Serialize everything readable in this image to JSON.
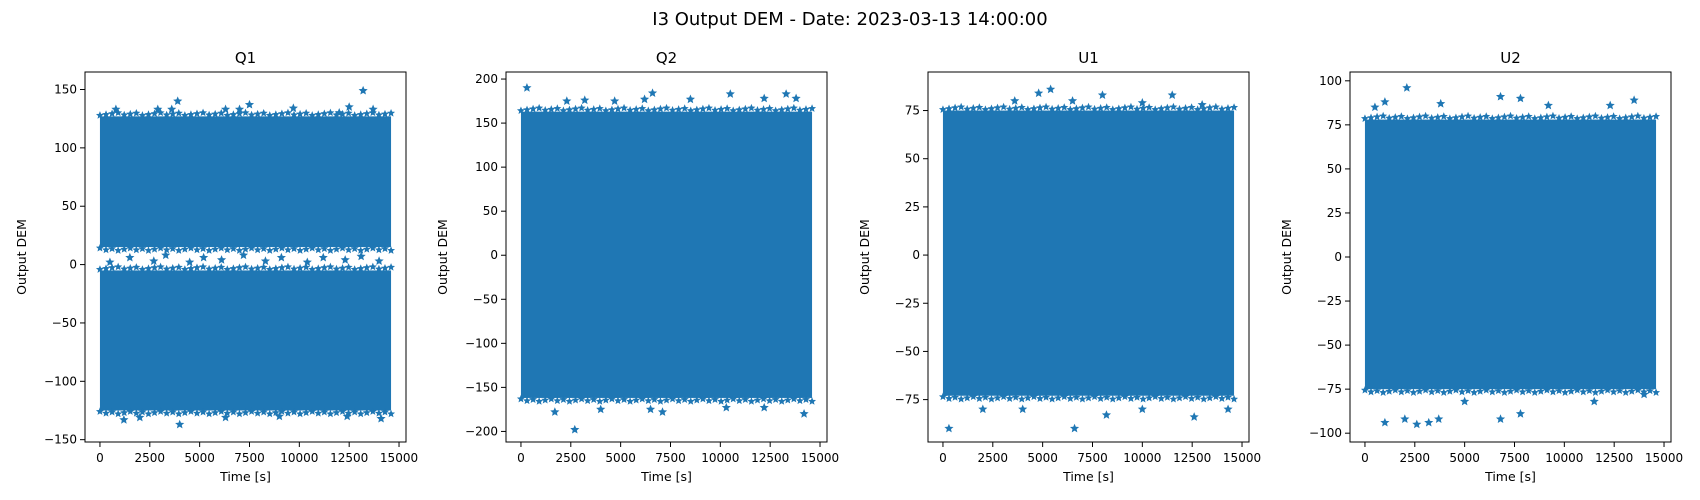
{
  "figure": {
    "suptitle": "I3 Output DEM - Date: 2023-03-13 14:00:00",
    "marker_color": "#1f77b4"
  },
  "chart_data": [
    {
      "type": "scatter",
      "title": "Q1",
      "xlabel": "Time [s]",
      "ylabel": "Output DEM",
      "xlim": [
        -750,
        15350
      ],
      "ylim": [
        -152,
        165
      ],
      "xticks": [
        0,
        2500,
        5000,
        7500,
        10000,
        12500,
        15000
      ],
      "yticks": [
        -150,
        -100,
        -50,
        0,
        50,
        100,
        150
      ],
      "marker": "star",
      "x_extent": [
        0,
        14600
      ],
      "bands": [
        {
          "x": [
            0,
            14600
          ],
          "y": [
            -125,
            -5
          ]
        },
        {
          "x": [
            0,
            14600
          ],
          "y": [
            15,
            127
          ]
        }
      ],
      "outliers": [
        {
          "x": 800,
          "y": 133
        },
        {
          "x": 2900,
          "y": 133
        },
        {
          "x": 3600,
          "y": 133
        },
        {
          "x": 3900,
          "y": 140
        },
        {
          "x": 6300,
          "y": 133
        },
        {
          "x": 7000,
          "y": 133
        },
        {
          "x": 7500,
          "y": 137
        },
        {
          "x": 9700,
          "y": 134
        },
        {
          "x": 12000,
          "y": 130
        },
        {
          "x": 12500,
          "y": 135
        },
        {
          "x": 13200,
          "y": 149
        },
        {
          "x": 13700,
          "y": 133
        },
        {
          "x": 500,
          "y": 2
        },
        {
          "x": 1500,
          "y": 6
        },
        {
          "x": 2700,
          "y": 3
        },
        {
          "x": 3300,
          "y": 8
        },
        {
          "x": 4500,
          "y": 2
        },
        {
          "x": 5200,
          "y": 6
        },
        {
          "x": 6100,
          "y": 4
        },
        {
          "x": 7200,
          "y": 8
        },
        {
          "x": 8300,
          "y": 3
        },
        {
          "x": 9100,
          "y": 6
        },
        {
          "x": 10400,
          "y": 2
        },
        {
          "x": 11200,
          "y": 6
        },
        {
          "x": 12300,
          "y": 4
        },
        {
          "x": 13100,
          "y": 7
        },
        {
          "x": 14000,
          "y": 3
        },
        {
          "x": 4000,
          "y": -137
        },
        {
          "x": 1200,
          "y": -133
        },
        {
          "x": 2000,
          "y": -131
        },
        {
          "x": 6300,
          "y": -131
        },
        {
          "x": 9000,
          "y": -130
        },
        {
          "x": 12400,
          "y": -130
        },
        {
          "x": 14100,
          "y": -132
        }
      ]
    },
    {
      "type": "scatter",
      "title": "Q2",
      "xlabel": "Time [s]",
      "ylabel": "Output DEM",
      "xlim": [
        -750,
        15350
      ],
      "ylim": [
        -212,
        208
      ],
      "xticks": [
        0,
        2500,
        5000,
        7500,
        10000,
        12500,
        15000
      ],
      "yticks": [
        -200,
        -150,
        -100,
        -50,
        0,
        50,
        100,
        150,
        200
      ],
      "marker": "star",
      "x_extent": [
        0,
        14600
      ],
      "bands": [
        {
          "x": [
            0,
            14600
          ],
          "y": [
            -162,
            163
          ]
        }
      ],
      "outliers": [
        {
          "x": 300,
          "y": 190
        },
        {
          "x": 2300,
          "y": 175
        },
        {
          "x": 3200,
          "y": 176
        },
        {
          "x": 4700,
          "y": 175
        },
        {
          "x": 6200,
          "y": 177
        },
        {
          "x": 6600,
          "y": 184
        },
        {
          "x": 8500,
          "y": 177
        },
        {
          "x": 10500,
          "y": 183
        },
        {
          "x": 12200,
          "y": 178
        },
        {
          "x": 13300,
          "y": 183
        },
        {
          "x": 13800,
          "y": 178
        },
        {
          "x": 2700,
          "y": -198
        },
        {
          "x": 1700,
          "y": -178
        },
        {
          "x": 4000,
          "y": -175
        },
        {
          "x": 6500,
          "y": -175
        },
        {
          "x": 7100,
          "y": -178
        },
        {
          "x": 10300,
          "y": -173
        },
        {
          "x": 12200,
          "y": -173
        },
        {
          "x": 14200,
          "y": -180
        }
      ]
    },
    {
      "type": "scatter",
      "title": "U1",
      "xlabel": "Time [s]",
      "ylabel": "Output DEM",
      "xlim": [
        -750,
        15350
      ],
      "ylim": [
        -97,
        95
      ],
      "xticks": [
        0,
        2500,
        5000,
        7500,
        10000,
        12500,
        15000
      ],
      "yticks": [
        -75,
        -50,
        -25,
        0,
        25,
        50,
        75
      ],
      "marker": "star",
      "x_extent": [
        0,
        14600
      ],
      "bands": [
        {
          "x": [
            0,
            14600
          ],
          "y": [
            -73,
            75
          ]
        }
      ],
      "outliers": [
        {
          "x": 3600,
          "y": 80
        },
        {
          "x": 4800,
          "y": 84
        },
        {
          "x": 5400,
          "y": 86
        },
        {
          "x": 6500,
          "y": 80
        },
        {
          "x": 8000,
          "y": 83
        },
        {
          "x": 10000,
          "y": 79
        },
        {
          "x": 11500,
          "y": 83
        },
        {
          "x": 13000,
          "y": 78
        },
        {
          "x": 300,
          "y": -90
        },
        {
          "x": 6600,
          "y": -90
        },
        {
          "x": 8200,
          "y": -83
        },
        {
          "x": 2000,
          "y": -80
        },
        {
          "x": 4000,
          "y": -80
        },
        {
          "x": 10000,
          "y": -80
        },
        {
          "x": 12600,
          "y": -84
        },
        {
          "x": 14300,
          "y": -80
        }
      ]
    },
    {
      "type": "scatter",
      "title": "U2",
      "xlabel": "Time [s]",
      "ylabel": "Output DEM",
      "xlim": [
        -750,
        15350
      ],
      "ylim": [
        -105,
        105
      ],
      "xticks": [
        0,
        2500,
        5000,
        7500,
        10000,
        12500,
        15000
      ],
      "yticks": [
        -100,
        -75,
        -50,
        -25,
        0,
        25,
        50,
        75,
        100
      ],
      "marker": "star",
      "x_extent": [
        0,
        14600
      ],
      "bands": [
        {
          "x": [
            0,
            14600
          ],
          "y": [
            -75,
            78
          ]
        }
      ],
      "outliers": [
        {
          "x": 2100,
          "y": 96
        },
        {
          "x": 6800,
          "y": 91
        },
        {
          "x": 7800,
          "y": 90
        },
        {
          "x": 9200,
          "y": 86
        },
        {
          "x": 3800,
          "y": 87
        },
        {
          "x": 12300,
          "y": 86
        },
        {
          "x": 13500,
          "y": 89
        },
        {
          "x": 1000,
          "y": 88
        },
        {
          "x": 500,
          "y": 85
        },
        {
          "x": 1000,
          "y": -94
        },
        {
          "x": 2000,
          "y": -92
        },
        {
          "x": 2600,
          "y": -95
        },
        {
          "x": 3200,
          "y": -94
        },
        {
          "x": 3700,
          "y": -92
        },
        {
          "x": 6800,
          "y": -92
        },
        {
          "x": 7800,
          "y": -89
        },
        {
          "x": 5000,
          "y": -82
        },
        {
          "x": 11500,
          "y": -82
        },
        {
          "x": 14000,
          "y": -78
        }
      ]
    }
  ]
}
